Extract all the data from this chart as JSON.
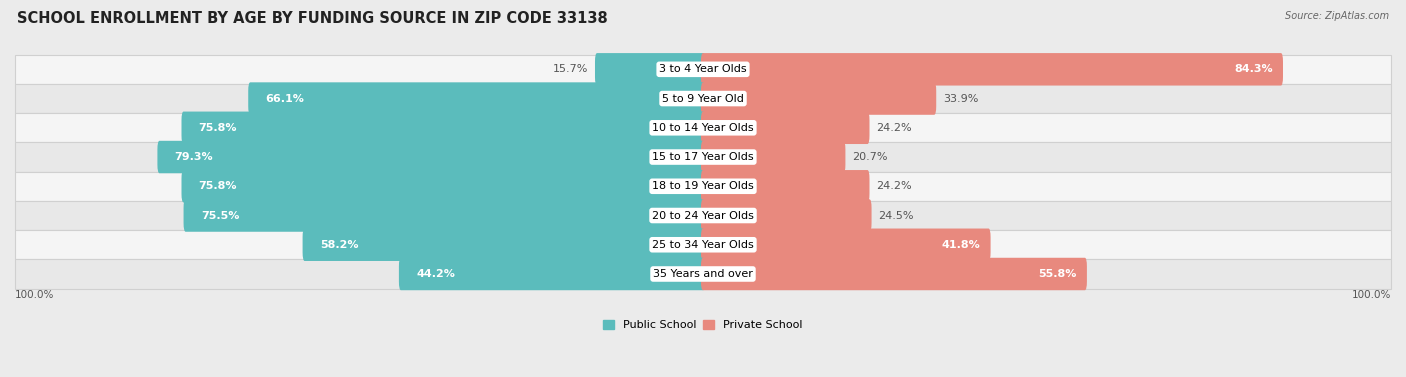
{
  "title": "SCHOOL ENROLLMENT BY AGE BY FUNDING SOURCE IN ZIP CODE 33138",
  "source": "Source: ZipAtlas.com",
  "categories": [
    "3 to 4 Year Olds",
    "5 to 9 Year Old",
    "10 to 14 Year Olds",
    "15 to 17 Year Olds",
    "18 to 19 Year Olds",
    "20 to 24 Year Olds",
    "25 to 34 Year Olds",
    "35 Years and over"
  ],
  "public_pct": [
    15.7,
    66.1,
    75.8,
    79.3,
    75.8,
    75.5,
    58.2,
    44.2
  ],
  "private_pct": [
    84.3,
    33.9,
    24.2,
    20.7,
    24.2,
    24.5,
    41.8,
    55.8
  ],
  "public_color": "#5bbcbc",
  "private_color": "#e8897e",
  "bg_color": "#ebebeb",
  "row_bg_light": "#f5f5f5",
  "row_bg_dark": "#e8e8e8",
  "legend_public": "Public School",
  "legend_private": "Private School",
  "title_fontsize": 10.5,
  "label_fontsize": 8.0,
  "axis_label_fontsize": 7.5
}
